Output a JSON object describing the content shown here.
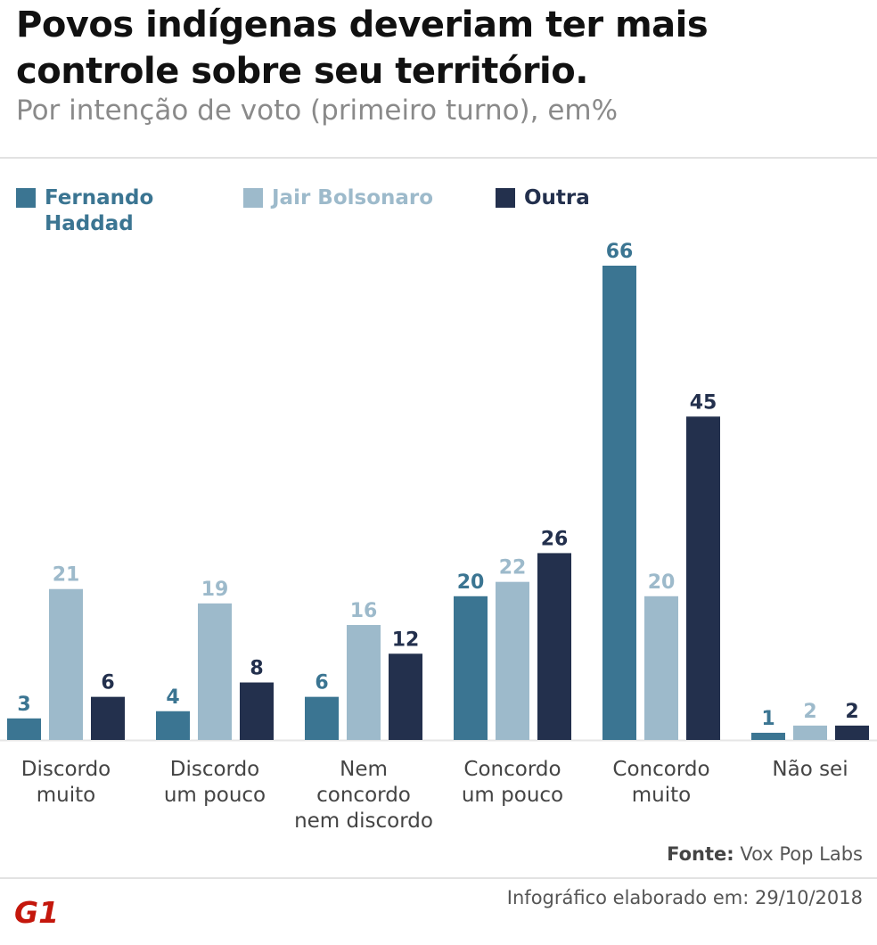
{
  "header": {
    "title": "Povos indígenas deveriam ter mais controle sobre seu território.",
    "subtitle": "Por intenção de voto (primeiro turno), em%"
  },
  "legend": [
    {
      "label": "Fernando Haddad",
      "color": "#3b7592"
    },
    {
      "label": "Jair Bolsonaro",
      "color": "#9dbacb"
    },
    {
      "label": "Outra",
      "color": "#23304d"
    }
  ],
  "chart_data": {
    "type": "bar",
    "title": "Povos indígenas deveriam ter mais controle sobre seu território.",
    "subtitle": "Por intenção de voto (primeiro turno), em%",
    "categories": [
      [
        "Discordo",
        "muito"
      ],
      [
        "Discordo",
        "um pouco"
      ],
      [
        "Nem",
        "concordo",
        "nem discordo"
      ],
      [
        "Concordo",
        "um pouco"
      ],
      [
        "Concordo",
        "muito"
      ],
      [
        "Não sei"
      ]
    ],
    "series": [
      {
        "name": "Fernando Haddad",
        "color": "#3b7592",
        "values": [
          3,
          4,
          6,
          20,
          66,
          1
        ]
      },
      {
        "name": "Jair Bolsonaro",
        "color": "#9dbacb",
        "values": [
          21,
          19,
          16,
          22,
          20,
          2
        ]
      },
      {
        "name": "Outra",
        "color": "#23304d",
        "values": [
          6,
          8,
          12,
          26,
          45,
          2
        ]
      }
    ],
    "ylim": [
      0,
      66
    ],
    "grid": false,
    "legend": "top"
  },
  "footer": {
    "source_label": "Fonte:",
    "source_value": "Vox Pop Labs",
    "note": "Infográfico elaborado em: 29/10/2018",
    "logo_text": "G1",
    "logo_color": "#c4170c"
  }
}
